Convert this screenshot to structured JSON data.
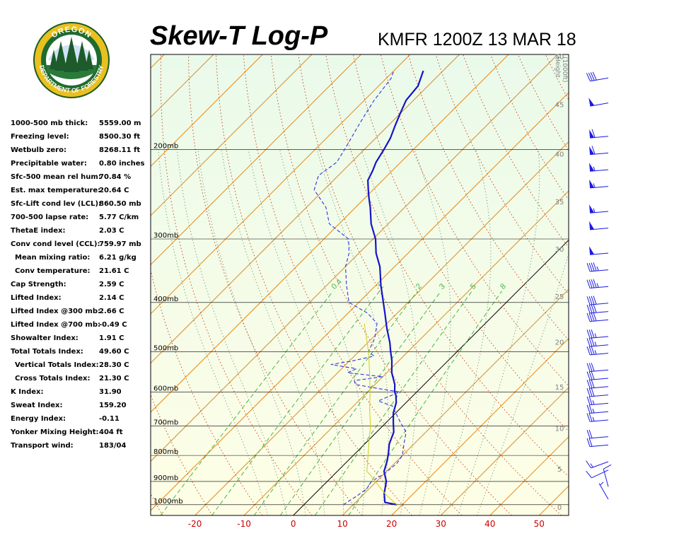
{
  "title": "Skew-T Log-P",
  "subtitle": "KMFR 1200Z 13 MAR 18",
  "logo": {
    "top_text": "OREGON",
    "bottom_text": "DEPARTMENT OF FORESTRY"
  },
  "stats": [
    {
      "label": "1000-500 mb thick:",
      "value": "5559.00 m"
    },
    {
      "label": "Freezing level:",
      "value": "8500.30 ft"
    },
    {
      "label": "Wetbulb zero:",
      "value": "8268.11 ft"
    },
    {
      "label": "Precipitable water:",
      "value": "0.80 inches"
    },
    {
      "label": "Sfc-500 mean rel hum:",
      "value": "70.84 %"
    },
    {
      "label": "Est. max temperature:",
      "value": "20.64 C"
    },
    {
      "label": "Sfc-Lift cond lev (LCL):",
      "value": "860.50 mb"
    },
    {
      "label": "700-500 lapse rate:",
      "value": "5.77 C/km"
    },
    {
      "label": "ThetaE index:",
      "value": "2.03 C"
    },
    {
      "label": "Conv cond level (CCL):",
      "value": "759.97 mb"
    },
    {
      "label": "Mean mixing ratio:",
      "value": "6.21 g/kg",
      "indent": true
    },
    {
      "label": "Conv temperature:",
      "value": "21.61 C",
      "indent": true
    },
    {
      "label": "Cap Strength:",
      "value": "2.59 C"
    },
    {
      "label": "Lifted Index:",
      "value": "2.14 C"
    },
    {
      "label": "Lifted Index @300 mb:",
      "value": "2.66 C"
    },
    {
      "label": "Lifted Index @700 mb:",
      "value": "-0.49 C"
    },
    {
      "label": "Showalter Index:",
      "value": "1.91 C"
    },
    {
      "label": "Total Totals Index:",
      "value": "49.60 C"
    },
    {
      "label": "Vertical Totals Index:",
      "value": "28.30 C",
      "indent": true
    },
    {
      "label": "Cross Totals Index:",
      "value": "21.30 C",
      "indent": true
    },
    {
      "label": "K Index:",
      "value": "31.90"
    },
    {
      "label": "Sweat Index:",
      "value": "159.20"
    },
    {
      "label": "Energy Index:",
      "value": "-0.11"
    },
    {
      "label": "Yonker Mixing Height:",
      "value": "404 ft"
    },
    {
      "label": "Transport wind:",
      "value": "183/04"
    }
  ],
  "chart_data": {
    "type": "line",
    "chart_kind": "skew-t log-p",
    "x_label_values": [
      -20,
      -10,
      0,
      10,
      20,
      30,
      40,
      50
    ],
    "x_tick_labels": [
      "-20",
      "-10",
      "0",
      "10",
      "20",
      "30",
      "40",
      "50"
    ],
    "xlim": [
      -29,
      56
    ],
    "pressure_levels": [
      1000,
      900,
      800,
      700,
      600,
      500,
      400,
      300,
      200
    ],
    "pressure_labels": [
      "1000mb",
      "900mb",
      "800mb",
      "700mb",
      "600mb",
      "500mb",
      "400mb",
      "300mb",
      "200mb"
    ],
    "ylim_mb": [
      1050,
      130
    ],
    "height_axis_label": [
      "Height",
      "(1000ft)"
    ],
    "height_ticks": [
      {
        "label": "0",
        "mb": 1010
      },
      {
        "label": "5",
        "mb": 850
      },
      {
        "label": "10",
        "mb": 707
      },
      {
        "label": "15",
        "mb": 586
      },
      {
        "label": "20",
        "mb": 478
      },
      {
        "label": "25",
        "mb": 389
      },
      {
        "label": "30",
        "mb": 314
      },
      {
        "label": "35",
        "mb": 253
      },
      {
        "label": "40",
        "mb": 204
      },
      {
        "label": "45",
        "mb": 163
      },
      {
        "label": "50",
        "mb": 131
      }
    ],
    "mixing_ratio_labels": [
      "0.4",
      "1",
      "2",
      "3",
      "5",
      "8"
    ],
    "mixing_ratio_values": [
      0.4,
      1,
      2,
      3,
      5,
      8
    ],
    "dry_adiabats_theta_c": [
      -30,
      -20,
      -10,
      0,
      10,
      20,
      30,
      40,
      50,
      60,
      70,
      80,
      90,
      100,
      110,
      120,
      130,
      140,
      150,
      160,
      170
    ],
    "moist_adiabats_thetaw_c": [
      -8,
      -4,
      0,
      4,
      8,
      12,
      16,
      20,
      24,
      28,
      32,
      36
    ],
    "isotherm_spacing_c": 10,
    "highlight_isotherm_c": 0,
    "series": [
      {
        "role": "temperature",
        "color": "#1414c8",
        "points": [
          [
            1000,
            18.9
          ],
          [
            990,
            16.0
          ],
          [
            950,
            14.0
          ],
          [
            900,
            12.0
          ],
          [
            860,
            9.5
          ],
          [
            820,
            8.0
          ],
          [
            790,
            6.6
          ],
          [
            760,
            5.0
          ],
          [
            720,
            3.5
          ],
          [
            690,
            1.5
          ],
          [
            660,
            -0.5
          ],
          [
            630,
            -2.0
          ],
          [
            610,
            -3.5
          ],
          [
            600,
            -4.5
          ],
          [
            580,
            -6.0
          ],
          [
            550,
            -9.0
          ],
          [
            520,
            -11.5
          ],
          [
            500,
            -13.5
          ],
          [
            480,
            -15.5
          ],
          [
            450,
            -19.0
          ],
          [
            420,
            -22.5
          ],
          [
            400,
            -25.0
          ],
          [
            370,
            -29.0
          ],
          [
            340,
            -33.0
          ],
          [
            320,
            -36.5
          ],
          [
            300,
            -39.5
          ],
          [
            280,
            -43.5
          ],
          [
            260,
            -47.0
          ],
          [
            250,
            -49.0
          ],
          [
            240,
            -51.0
          ],
          [
            230,
            -53.0
          ],
          [
            220,
            -54.0
          ],
          [
            212,
            -55.0
          ],
          [
            200,
            -56.0
          ],
          [
            190,
            -57.0
          ],
          [
            180,
            -58.5
          ],
          [
            170,
            -60.0
          ],
          [
            160,
            -61.5
          ],
          [
            150,
            -62.0
          ],
          [
            140,
            -64.0
          ]
        ]
      },
      {
        "role": "dewpoint",
        "color": "#3232e6",
        "points": [
          [
            1000,
            8.0
          ],
          [
            960,
            9.0
          ],
          [
            930,
            9.5
          ],
          [
            900,
            9.0
          ],
          [
            870,
            10.0
          ],
          [
            830,
            10.5
          ],
          [
            800,
            10.0
          ],
          [
            760,
            8.0
          ],
          [
            720,
            6.0
          ],
          [
            690,
            3.0
          ],
          [
            660,
            0.0
          ],
          [
            640,
            -2.0
          ],
          [
            625,
            -6.0
          ],
          [
            610,
            -4.5
          ],
          [
            600,
            -3.5
          ],
          [
            590,
            -9.0
          ],
          [
            580,
            -14.0
          ],
          [
            570,
            -15.0
          ],
          [
            560,
            -10.0
          ],
          [
            550,
            -18.0
          ],
          [
            540,
            -17.0
          ],
          [
            530,
            -23.0
          ],
          [
            520,
            -19.0
          ],
          [
            510,
            -16.0
          ],
          [
            500,
            -18.0
          ],
          [
            470,
            -19.5
          ],
          [
            440,
            -22.0
          ],
          [
            420,
            -26.0
          ],
          [
            400,
            -32.0
          ],
          [
            370,
            -36.0
          ],
          [
            340,
            -40.0
          ],
          [
            320,
            -42.0
          ],
          [
            300,
            -45.0
          ],
          [
            280,
            -52.0
          ],
          [
            260,
            -56.0
          ],
          [
            240,
            -62.0
          ],
          [
            225,
            -64.0
          ],
          [
            212,
            -63.0
          ],
          [
            200,
            -64.0
          ],
          [
            180,
            -66.0
          ],
          [
            170,
            -67.0
          ],
          [
            160,
            -68.0
          ],
          [
            145,
            -69.0
          ],
          [
            140,
            -70.0
          ]
        ]
      },
      {
        "role": "parcel",
        "color": "#d2d228",
        "points": [
          [
            1000,
            18.9
          ],
          [
            960,
            15.0
          ],
          [
            920,
            11.5
          ],
          [
            880,
            8.0
          ],
          [
            860,
            6.0
          ],
          [
            800,
            3.0
          ],
          [
            750,
            0.3
          ],
          [
            700,
            -2.5
          ],
          [
            650,
            -6.0
          ],
          [
            600,
            -9.5
          ],
          [
            550,
            -13.5
          ],
          [
            500,
            -18.0
          ],
          [
            470,
            -21.2
          ],
          [
            440,
            -24.6
          ]
        ]
      }
    ],
    "wind_barbs": [
      {
        "height_kft": 0.5,
        "dir_deg": 330,
        "speed_kt": 5
      },
      {
        "height_kft": 2,
        "dir_deg": 345,
        "speed_kt": 10
      },
      {
        "height_kft": 4,
        "dir_deg": 245,
        "speed_kt": 10
      },
      {
        "height_kft": 5,
        "dir_deg": 250,
        "speed_kt": 15
      },
      {
        "height_kft": 7,
        "dir_deg": 265,
        "speed_kt": 20
      },
      {
        "height_kft": 8,
        "dir_deg": 265,
        "speed_kt": 20
      },
      {
        "height_kft": 10,
        "dir_deg": 265,
        "speed_kt": 25
      },
      {
        "height_kft": 11,
        "dir_deg": 265,
        "speed_kt": 25
      },
      {
        "height_kft": 12,
        "dir_deg": 265,
        "speed_kt": 25
      },
      {
        "height_kft": 13,
        "dir_deg": 265,
        "speed_kt": 30
      },
      {
        "height_kft": 14,
        "dir_deg": 265,
        "speed_kt": 30
      },
      {
        "height_kft": 15,
        "dir_deg": 265,
        "speed_kt": 30
      },
      {
        "height_kft": 16,
        "dir_deg": 265,
        "speed_kt": 30
      },
      {
        "height_kft": 18,
        "dir_deg": 265,
        "speed_kt": 35
      },
      {
        "height_kft": 19,
        "dir_deg": 265,
        "speed_kt": 35
      },
      {
        "height_kft": 20,
        "dir_deg": 265,
        "speed_kt": 35
      },
      {
        "height_kft": 22,
        "dir_deg": 265,
        "speed_kt": 40
      },
      {
        "height_kft": 23,
        "dir_deg": 265,
        "speed_kt": 40
      },
      {
        "height_kft": 24,
        "dir_deg": 265,
        "speed_kt": 40
      },
      {
        "height_kft": 26,
        "dir_deg": 265,
        "speed_kt": 45
      },
      {
        "height_kft": 28,
        "dir_deg": 265,
        "speed_kt": 45
      },
      {
        "height_kft": 30,
        "dir_deg": 265,
        "speed_kt": 50
      },
      {
        "height_kft": 33,
        "dir_deg": 265,
        "speed_kt": 50
      },
      {
        "height_kft": 35,
        "dir_deg": 265,
        "speed_kt": 55
      },
      {
        "height_kft": 38,
        "dir_deg": 265,
        "speed_kt": 55
      },
      {
        "height_kft": 40,
        "dir_deg": 265,
        "speed_kt": 55
      },
      {
        "height_kft": 42,
        "dir_deg": 265,
        "speed_kt": 60
      },
      {
        "height_kft": 44,
        "dir_deg": 265,
        "speed_kt": 60
      },
      {
        "height_kft": 48,
        "dir_deg": 260,
        "speed_kt": 50
      },
      {
        "height_kft": 51,
        "dir_deg": 260,
        "speed_kt": 40
      }
    ],
    "colors": {
      "background_top": "#eafaea",
      "background_bottom": "#fefee6",
      "isotherm": "#e08a1e",
      "dry_adiabat": "#c93c0f",
      "moist_adiabat": "#6e8a6e",
      "mixing_ratio": "#46b446",
      "isobar": "#000000",
      "zero_isotherm": "#000000",
      "x_tick_label": "#cc0000",
      "height_label": "#808080"
    }
  }
}
